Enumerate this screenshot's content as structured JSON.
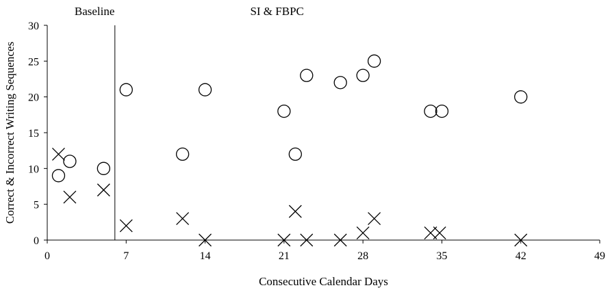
{
  "chart_data": {
    "type": "scatter",
    "xlabel": "Consecutive Calendar Days",
    "ylabel": "Correct & Incorrect Writing Sequences",
    "xlim": [
      0,
      49
    ],
    "ylim": [
      0,
      30
    ],
    "xticks": [
      0,
      7,
      14,
      21,
      28,
      35,
      42,
      49
    ],
    "yticks": [
      0,
      5,
      10,
      15,
      20,
      25,
      30
    ],
    "grid": false,
    "legend": "none",
    "phase_change_x": 6,
    "annotations": [
      {
        "text": "Baseline",
        "x": 4.2,
        "y": 30
      },
      {
        "text": "SI & FBPC",
        "x": 18,
        "y": 30
      }
    ],
    "series": [
      {
        "marker": "circle",
        "x": [
          1,
          2,
          5,
          7,
          12,
          14,
          21,
          22,
          23,
          26,
          28,
          29,
          34,
          35,
          42
        ],
        "y": [
          9,
          11,
          10,
          21,
          12,
          21,
          18,
          12,
          23,
          22,
          23,
          25,
          18,
          18,
          20
        ]
      },
      {
        "marker": "x",
        "x": [
          1,
          2,
          5,
          7,
          12,
          14,
          21,
          22,
          23,
          26,
          28,
          29,
          34,
          34.8,
          42
        ],
        "y": [
          12,
          6,
          7,
          2,
          3,
          0,
          0,
          4,
          0,
          0,
          1,
          3,
          1,
          1,
          0
        ]
      }
    ],
    "colors": {
      "marker": "#000000",
      "axis": "#000000"
    }
  }
}
